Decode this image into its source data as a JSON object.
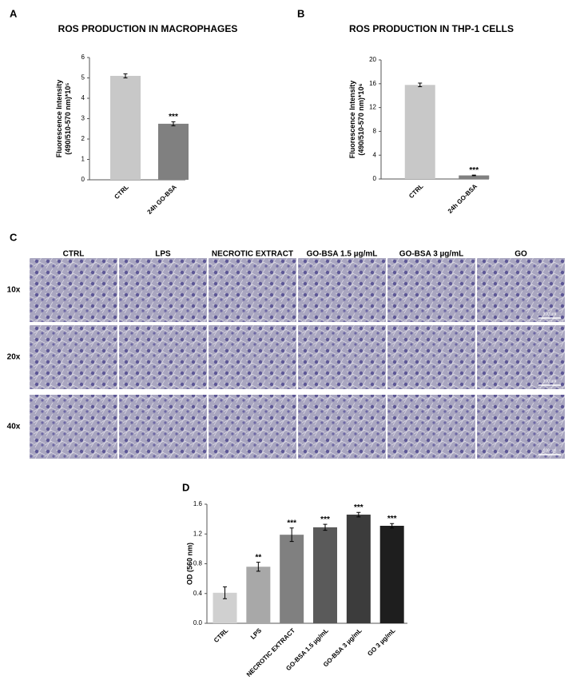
{
  "chart_data": [
    {
      "type": "bar",
      "panel": "A",
      "title": "ROS PRODUCTION IN MACROPHAGES",
      "ylabel": [
        "Fluorescence Intensity",
        "(490/510-570 nm)*10⁵"
      ],
      "categories": [
        "CTRL",
        "24h GO-BSA"
      ],
      "values": [
        5.1,
        2.75
      ],
      "errors": [
        0.1,
        0.1
      ],
      "annotations": [
        null,
        "***"
      ],
      "colors": [
        "#c8c8c8",
        "#808080"
      ],
      "ylim": [
        0,
        6
      ],
      "yticks": [
        0,
        1,
        2,
        3,
        4,
        5,
        6
      ]
    },
    {
      "type": "bar",
      "panel": "B",
      "title": "ROS PRODUCTION IN THP-1 CELLS",
      "ylabel": [
        "Fluorescence Intensity",
        "(490/510-570 nm)*10⁶"
      ],
      "categories": [
        "CTRL",
        "24h GO-BSA"
      ],
      "values": [
        15.8,
        0.6
      ],
      "errors": [
        0.3,
        0.05
      ],
      "annotations": [
        null,
        "***"
      ],
      "colors": [
        "#c8c8c8",
        "#808080"
      ],
      "ylim": [
        0,
        20
      ],
      "yticks": [
        0,
        4,
        8,
        12,
        16,
        20
      ]
    },
    {
      "type": "bar",
      "panel": "D",
      "ylabel": [
        "OD (560 nm)"
      ],
      "categories": [
        "CTRL",
        "LPS",
        "NECROTIC EXTRACT",
        "GO-BSA 1.5 µg/mL",
        "GO-BSA 3 µg/mL",
        "GO 3 µg/mL"
      ],
      "values": [
        0.41,
        0.76,
        1.19,
        1.29,
        1.46,
        1.31
      ],
      "errors": [
        0.08,
        0.06,
        0.09,
        0.04,
        0.03,
        0.03
      ],
      "annotations": [
        null,
        "**",
        "***",
        "***",
        "***",
        "***"
      ],
      "colors": [
        "#d0d0d0",
        "#a8a8a8",
        "#808080",
        "#5a5a5a",
        "#3c3c3c",
        "#1e1e1e"
      ],
      "ylim": [
        0,
        1.6
      ],
      "yticks": [
        {
          "value": 0,
          "label": "0.0"
        },
        0.4,
        0.8,
        1.2,
        1.6
      ]
    }
  ],
  "micrographs": {
    "panel": "C",
    "columns": [
      "CTRL",
      "LPS",
      "NECROTIC EXTRACT",
      "GO-BSA 1.5 µg/mL",
      "GO-BSA 3 µg/mL",
      "GO"
    ],
    "rows": [
      "10x",
      "20x",
      "40x"
    ],
    "scale_bar": "100 µm"
  }
}
